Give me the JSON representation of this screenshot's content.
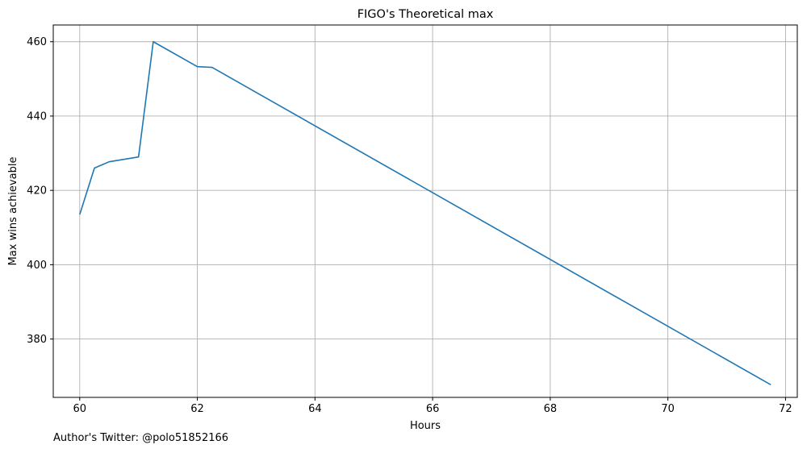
{
  "chart_data": {
    "type": "line",
    "title": "FIGO's Theoretical max",
    "xlabel": "Hours",
    "ylabel": "Max wins achievable",
    "x": [
      60.0,
      60.25,
      60.5,
      61.0,
      61.25,
      62.0,
      62.25,
      71.75
    ],
    "series": [
      {
        "values": [
          413.5,
          426.0,
          427.7,
          429.0,
          460.0,
          453.3,
          453.1,
          367.7
        ]
      }
    ],
    "xlim": [
      59.55,
      72.2
    ],
    "ylim": [
      364.3,
      464.5
    ],
    "xticks": [
      60,
      62,
      64,
      66,
      68,
      70,
      72
    ],
    "yticks": [
      380,
      400,
      420,
      440,
      460
    ],
    "grid": true,
    "line_color": "#1f77b4",
    "grid_color": "#b0b0b0"
  },
  "footer": {
    "text": "Author's Twitter: @polo51852166"
  }
}
